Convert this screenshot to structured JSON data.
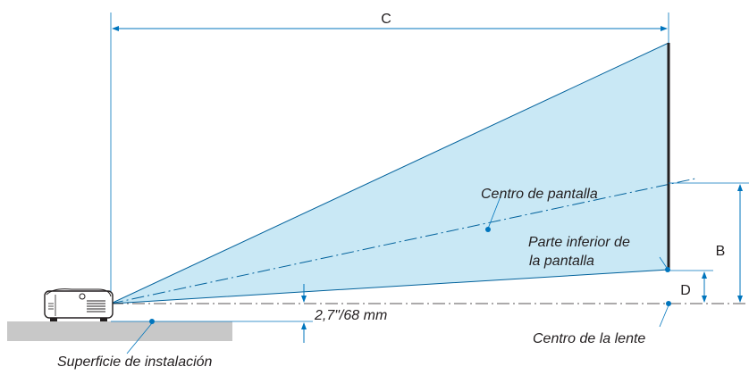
{
  "labels": {
    "c": "C",
    "b": "B",
    "d": "D",
    "screen_center": "Centro de pantalla",
    "screen_bottom_line1": "Parte inferior de",
    "screen_bottom_line2": "la pantalla",
    "offset": "2,7\"/68 mm",
    "lens_center": "Centro de la lente",
    "installation_surface": "Superficie de instalación"
  },
  "colors": {
    "beam_fill": "#c9e8f5",
    "beam_edge": "#00619b",
    "dimension_line": "#0075bd",
    "screen": "#231f20",
    "ground": "#c8c8c8",
    "text": "#231f20"
  }
}
